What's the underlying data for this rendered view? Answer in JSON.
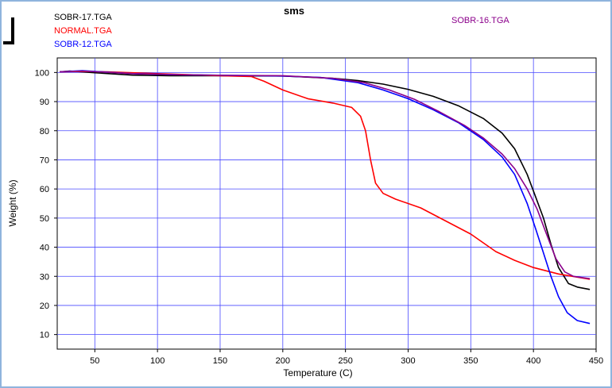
{
  "chart_data": {
    "type": "line",
    "title": "sms",
    "xlabel": "Temperature (C)",
    "ylabel": "Weight (%)",
    "xlim": [
      20,
      450
    ],
    "ylim": [
      5,
      105
    ],
    "xticks": [
      50,
      100,
      150,
      200,
      250,
      300,
      350,
      400,
      450
    ],
    "yticks": [
      10,
      20,
      30,
      40,
      50,
      60,
      70,
      80,
      90,
      100
    ],
    "grid": true,
    "legend_placement": "top",
    "series": [
      {
        "name": "SOBR-17.TGA",
        "color": "#000000",
        "points": [
          [
            22,
            100.2
          ],
          [
            30,
            100.5
          ],
          [
            50,
            99.9
          ],
          [
            80,
            99.1
          ],
          [
            110,
            98.9
          ],
          [
            150,
            98.9
          ],
          [
            200,
            98.8
          ],
          [
            240,
            98.0
          ],
          [
            260,
            97.2
          ],
          [
            280,
            96.0
          ],
          [
            300,
            94.2
          ],
          [
            320,
            91.8
          ],
          [
            340,
            88.6
          ],
          [
            360,
            84.2
          ],
          [
            375,
            79.2
          ],
          [
            385,
            73.8
          ],
          [
            395,
            65.0
          ],
          [
            402,
            57.0
          ],
          [
            408,
            50.0
          ],
          [
            414,
            41.0
          ],
          [
            420,
            33.0
          ],
          [
            428,
            27.5
          ],
          [
            435,
            26.3
          ],
          [
            445,
            25.5
          ]
        ]
      },
      {
        "name": "NORMAL.TGA",
        "color": "#ff0000",
        "points": [
          [
            22,
            100.2
          ],
          [
            40,
            100.4
          ],
          [
            60,
            100.2
          ],
          [
            100,
            99.6
          ],
          [
            150,
            98.9
          ],
          [
            175,
            98.6
          ],
          [
            185,
            97.0
          ],
          [
            200,
            94.0
          ],
          [
            220,
            91.0
          ],
          [
            240,
            89.5
          ],
          [
            255,
            88.0
          ],
          [
            262,
            85.0
          ],
          [
            266,
            80.0
          ],
          [
            270,
            70.0
          ],
          [
            274,
            62.0
          ],
          [
            280,
            58.5
          ],
          [
            290,
            56.5
          ],
          [
            310,
            53.5
          ],
          [
            330,
            49.0
          ],
          [
            350,
            44.5
          ],
          [
            370,
            38.5
          ],
          [
            385,
            35.5
          ],
          [
            400,
            33.0
          ],
          [
            420,
            30.8
          ],
          [
            445,
            29.0
          ]
        ]
      },
      {
        "name": "SOBR-12.TGA",
        "color": "#0000ff",
        "points": [
          [
            22,
            100.2
          ],
          [
            40,
            100.6
          ],
          [
            80,
            99.6
          ],
          [
            120,
            99.2
          ],
          [
            160,
            99.0
          ],
          [
            200,
            98.8
          ],
          [
            230,
            98.3
          ],
          [
            260,
            96.5
          ],
          [
            280,
            94.0
          ],
          [
            300,
            91.0
          ],
          [
            320,
            87.2
          ],
          [
            340,
            82.8
          ],
          [
            360,
            77.0
          ],
          [
            375,
            71.0
          ],
          [
            385,
            65.0
          ],
          [
            395,
            55.0
          ],
          [
            402,
            46.0
          ],
          [
            408,
            38.0
          ],
          [
            414,
            30.0
          ],
          [
            420,
            23.0
          ],
          [
            427,
            17.5
          ],
          [
            435,
            14.8
          ],
          [
            445,
            13.8
          ]
        ]
      },
      {
        "name": "SOBR-16.TGA",
        "color": "#8b008b",
        "points": [
          [
            22,
            100.2
          ],
          [
            40,
            100.5
          ],
          [
            80,
            99.6
          ],
          [
            120,
            99.2
          ],
          [
            160,
            99.0
          ],
          [
            200,
            98.9
          ],
          [
            240,
            98.0
          ],
          [
            265,
            96.5
          ],
          [
            285,
            94.0
          ],
          [
            305,
            90.8
          ],
          [
            325,
            86.5
          ],
          [
            345,
            81.8
          ],
          [
            360,
            77.5
          ],
          [
            375,
            72.0
          ],
          [
            385,
            67.0
          ],
          [
            395,
            60.0
          ],
          [
            403,
            53.0
          ],
          [
            410,
            45.0
          ],
          [
            418,
            36.0
          ],
          [
            425,
            31.5
          ],
          [
            432,
            30.0
          ],
          [
            445,
            29.2
          ]
        ]
      }
    ]
  }
}
